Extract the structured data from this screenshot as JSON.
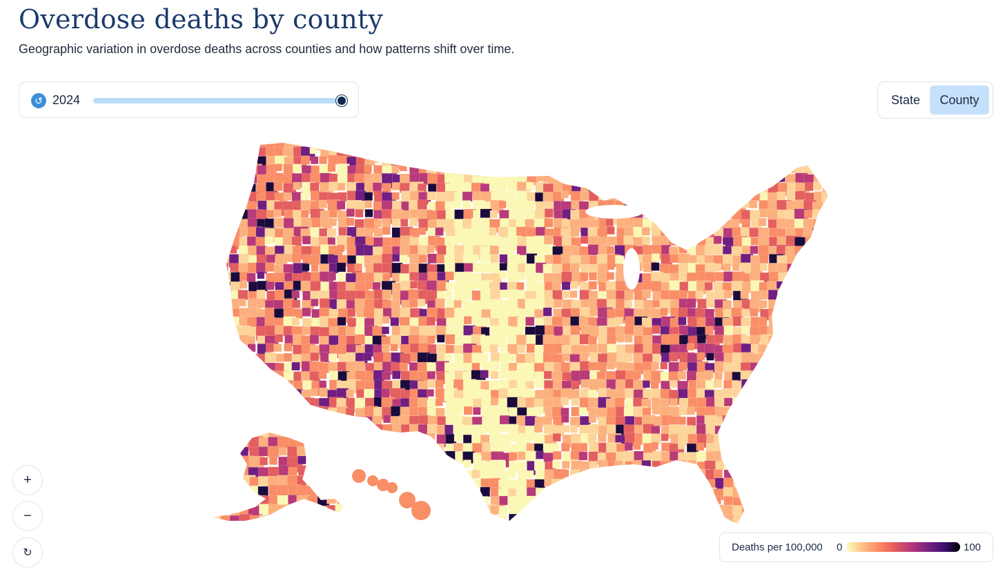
{
  "header": {
    "title": "Overdose deaths by county",
    "subtitle": "Geographic variation in overdose deaths across counties and how patterns shift over time."
  },
  "time_control": {
    "replay_icon": "replay-icon",
    "year": "2024",
    "slider_position_fraction": 1.0
  },
  "view_toggle": {
    "options": [
      "State",
      "County"
    ],
    "selected": "County"
  },
  "zoom_controls": {
    "zoom_in": "+",
    "zoom_out": "−",
    "reset_icon": "reset-icon"
  },
  "legend": {
    "label": "Deaths per 100,000",
    "min": "0",
    "max": "100",
    "colors": [
      "#fcfdbf",
      "#fec287",
      "#fb8761",
      "#e45a5c",
      "#b5367a",
      "#7b2382",
      "#3b0f70",
      "#000004"
    ]
  },
  "map": {
    "region": "United States counties",
    "insets": [
      "Alaska",
      "Hawaii"
    ],
    "palette": {
      "very_low": "#fbf7b5",
      "low": "#fdd49a",
      "mid_low": "#fcb07e",
      "mid": "#f98e67",
      "mid_high": "#e45f5f",
      "high": "#b83a78",
      "very_high": "#6f1e81",
      "extreme": "#1b0b3d"
    }
  }
}
